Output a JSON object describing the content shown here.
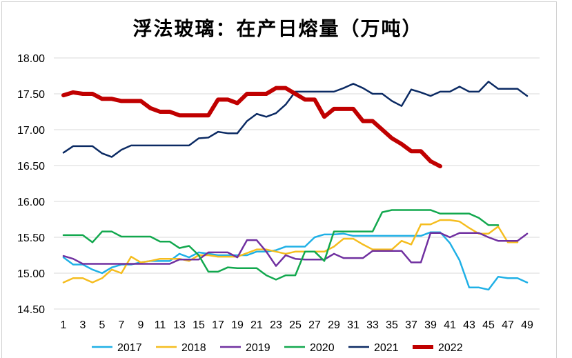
{
  "chart_data": {
    "type": "line",
    "title": "浮法玻璃：在产日熔量（万吨）",
    "xlabel": "",
    "ylabel": "",
    "ylim": [
      14.5,
      18.0
    ],
    "xlim": [
      1,
      49
    ],
    "yticks": [
      "14.50",
      "15.00",
      "15.50",
      "16.00",
      "16.50",
      "17.00",
      "17.50",
      "18.00"
    ],
    "xticks": [
      "1",
      "3",
      "5",
      "7",
      "9",
      "11",
      "13",
      "15",
      "17",
      "19",
      "21",
      "23",
      "25",
      "27",
      "29",
      "31",
      "33",
      "35",
      "37",
      "39",
      "41",
      "43",
      "45",
      "47",
      "49"
    ],
    "grid": true,
    "legend": "bottom",
    "series": [
      {
        "name": "2017",
        "color": "#1fb0e6",
        "width": 2.5,
        "values": [
          15.22,
          15.12,
          15.12,
          15.05,
          15.0,
          15.08,
          15.12,
          15.12,
          15.15,
          15.17,
          15.17,
          15.17,
          15.27,
          15.22,
          15.29,
          15.27,
          15.25,
          15.25,
          15.25,
          15.25,
          15.3,
          15.3,
          15.32,
          15.37,
          15.37,
          15.37,
          15.5,
          15.54,
          15.54,
          15.55,
          15.52,
          15.52,
          15.52,
          15.52,
          15.52,
          15.52,
          15.52,
          15.52,
          15.57,
          15.57,
          15.42,
          15.18,
          14.8,
          14.8,
          14.77,
          14.95,
          14.93,
          14.93,
          14.87
        ]
      },
      {
        "name": "2018",
        "color": "#f5bd1f",
        "width": 2.5,
        "values": [
          14.87,
          14.93,
          14.93,
          14.87,
          14.93,
          15.05,
          15.0,
          15.23,
          15.15,
          15.17,
          15.2,
          15.2,
          15.2,
          15.17,
          15.25,
          15.25,
          15.23,
          15.23,
          15.23,
          15.28,
          15.33,
          15.33,
          15.3,
          15.27,
          15.3,
          15.3,
          15.3,
          15.3,
          15.37,
          15.48,
          15.48,
          15.4,
          15.33,
          15.33,
          15.33,
          15.45,
          15.4,
          15.68,
          15.68,
          15.74,
          15.74,
          15.72,
          15.63,
          15.55,
          15.55,
          15.65,
          15.43,
          15.43
        ]
      },
      {
        "name": "2019",
        "color": "#7030a0",
        "width": 2.5,
        "values": [
          15.24,
          15.2,
          15.13,
          15.13,
          15.13,
          15.13,
          15.13,
          15.13,
          15.13,
          15.13,
          15.13,
          15.13,
          15.19,
          15.19,
          15.19,
          15.29,
          15.29,
          15.29,
          15.22,
          15.46,
          15.46,
          15.3,
          15.1,
          15.25,
          15.2,
          15.19,
          15.19,
          15.19,
          15.27,
          15.21,
          15.21,
          15.21,
          15.31,
          15.31,
          15.31,
          15.31,
          15.15,
          15.15,
          15.56,
          15.56,
          15.5,
          15.56,
          15.56,
          15.56,
          15.5,
          15.45,
          15.45,
          15.45,
          15.55
        ]
      },
      {
        "name": "2020",
        "color": "#12a84e",
        "width": 2.5,
        "values": [
          15.53,
          15.53,
          15.53,
          15.43,
          15.58,
          15.58,
          15.51,
          15.51,
          15.51,
          15.51,
          15.44,
          15.44,
          15.35,
          15.38,
          15.25,
          15.02,
          15.02,
          15.08,
          15.07,
          15.07,
          15.07,
          14.97,
          14.91,
          14.97,
          14.97,
          15.3,
          15.3,
          15.17,
          15.58,
          15.58,
          15.58,
          15.58,
          15.58,
          15.85,
          15.88,
          15.88,
          15.88,
          15.88,
          15.88,
          15.83,
          15.83,
          15.83,
          15.83,
          15.77,
          15.67,
          15.67
        ]
      },
      {
        "name": "2021",
        "color": "#0b2a63",
        "width": 2.5,
        "values": [
          16.68,
          16.77,
          16.77,
          16.77,
          16.67,
          16.62,
          16.72,
          16.78,
          16.78,
          16.78,
          16.78,
          16.78,
          16.78,
          16.78,
          16.88,
          16.89,
          16.97,
          16.95,
          16.95,
          17.12,
          17.22,
          17.18,
          17.23,
          17.35,
          17.53,
          17.53,
          17.53,
          17.53,
          17.53,
          17.58,
          17.64,
          17.58,
          17.5,
          17.5,
          17.4,
          17.33,
          17.56,
          17.52,
          17.47,
          17.53,
          17.53,
          17.6,
          17.53,
          17.53,
          17.67,
          17.57,
          17.57,
          17.57,
          17.47
        ]
      },
      {
        "name": "2022",
        "color": "#c00000",
        "width": 6,
        "values": [
          17.48,
          17.52,
          17.5,
          17.5,
          17.43,
          17.43,
          17.4,
          17.4,
          17.4,
          17.3,
          17.25,
          17.25,
          17.2,
          17.2,
          17.2,
          17.2,
          17.42,
          17.42,
          17.37,
          17.5,
          17.5,
          17.5,
          17.58,
          17.58,
          17.5,
          17.42,
          17.42,
          17.18,
          17.29,
          17.29,
          17.29,
          17.12,
          17.12,
          17.0,
          16.88,
          16.8,
          16.7,
          16.7,
          16.56,
          16.49
        ]
      }
    ]
  }
}
